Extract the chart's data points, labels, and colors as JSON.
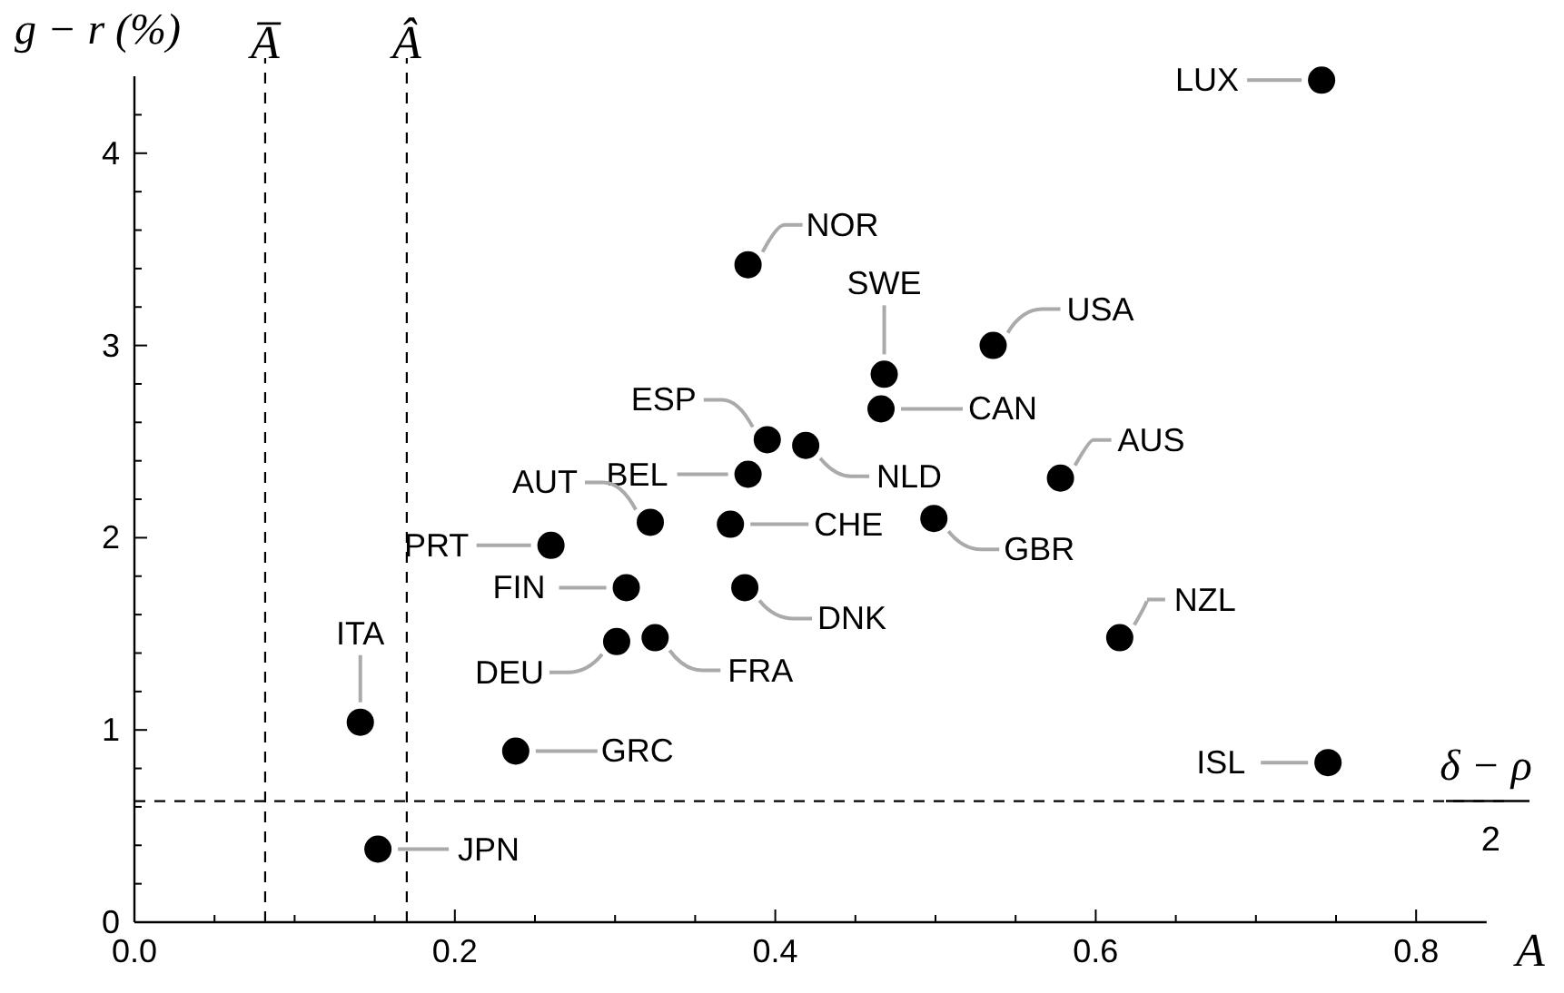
{
  "chart_data": {
    "type": "scatter",
    "xlabel": "A",
    "ylabel": "g − r (%)",
    "xlim": [
      0,
      0.844
    ],
    "ylim": [
      0,
      4.4
    ],
    "xticks": [
      {
        "value": 0,
        "label": "0.0"
      },
      {
        "value": 0.05,
        "label": null
      },
      {
        "value": 0.1,
        "label": null
      },
      {
        "value": 0.15,
        "label": null
      },
      {
        "value": 0.2,
        "label": "0.2"
      },
      {
        "value": 0.25,
        "label": null
      },
      {
        "value": 0.3,
        "label": null
      },
      {
        "value": 0.35,
        "label": null
      },
      {
        "value": 0.4,
        "label": "0.4"
      },
      {
        "value": 0.45,
        "label": null
      },
      {
        "value": 0.5,
        "label": null
      },
      {
        "value": 0.55,
        "label": null
      },
      {
        "value": 0.6,
        "label": "0.6"
      },
      {
        "value": 0.65,
        "label": null
      },
      {
        "value": 0.7,
        "label": null
      },
      {
        "value": 0.75,
        "label": null
      },
      {
        "value": 0.8,
        "label": "0.8"
      }
    ],
    "yticks": [
      0,
      {
        "value": 0.2,
        "label": null
      },
      {
        "value": 0.4,
        "label": null
      },
      {
        "value": 0.6,
        "label": null
      },
      {
        "value": 0.8,
        "label": null
      },
      1,
      {
        "value": 1.2,
        "label": null
      },
      {
        "value": 1.4,
        "label": null
      },
      {
        "value": 1.6,
        "label": null
      },
      {
        "value": 1.8,
        "label": null
      },
      2,
      {
        "value": 2.2,
        "label": null
      },
      {
        "value": 2.4,
        "label": null
      },
      {
        "value": 2.6,
        "label": null
      },
      {
        "value": 2.8,
        "label": null
      },
      3,
      {
        "value": 3.2,
        "label": null
      },
      {
        "value": 3.4,
        "label": null
      },
      {
        "value": 3.6,
        "label": null
      },
      {
        "value": 3.8,
        "label": null
      },
      4,
      {
        "value": 4.2,
        "label": null
      }
    ],
    "grid": false,
    "marker": "circle",
    "series": [
      {
        "color": "#000000",
        "x": [
          0.741,
          0.383,
          0.468,
          0.466,
          0.536,
          0.395,
          0.419,
          0.383,
          0.578,
          0.322,
          0.372,
          0.499,
          0.26,
          0.307,
          0.381,
          0.301,
          0.325,
          0.141,
          0.238,
          0.152,
          0.615,
          0.745
        ],
        "values": [
          4.38,
          3.42,
          2.85,
          2.67,
          3.0,
          2.51,
          2.48,
          2.33,
          2.31,
          2.08,
          2.07,
          2.1,
          1.96,
          1.74,
          1.74,
          1.46,
          1.48,
          1.04,
          0.89,
          0.38,
          1.48,
          0.83
        ]
      }
    ],
    "annotations": [
      {
        "text": "LUX",
        "x": 0.741,
        "y": 4.38
      },
      {
        "text": "NOR",
        "x": 0.383,
        "y": 3.42
      },
      {
        "text": "SWE",
        "x": 0.468,
        "y": 2.85
      },
      {
        "text": "CAN",
        "x": 0.466,
        "y": 2.67
      },
      {
        "text": "USA",
        "x": 0.536,
        "y": 3.0
      },
      {
        "text": "ESP",
        "x": 0.395,
        "y": 2.51
      },
      {
        "text": "NLD",
        "x": 0.419,
        "y": 2.48
      },
      {
        "text": "BEL",
        "x": 0.383,
        "y": 2.33
      },
      {
        "text": "AUS",
        "x": 0.578,
        "y": 2.31
      },
      {
        "text": "AUT",
        "x": 0.322,
        "y": 2.08
      },
      {
        "text": "CHE",
        "x": 0.372,
        "y": 2.07
      },
      {
        "text": "GBR",
        "x": 0.499,
        "y": 2.1
      },
      {
        "text": "PRT",
        "x": 0.26,
        "y": 1.96
      },
      {
        "text": "FIN",
        "x": 0.307,
        "y": 1.74
      },
      {
        "text": "DNK",
        "x": 0.381,
        "y": 1.74
      },
      {
        "text": "DEU",
        "x": 0.301,
        "y": 1.46
      },
      {
        "text": "FRA",
        "x": 0.325,
        "y": 1.48
      },
      {
        "text": "ITA",
        "x": 0.141,
        "y": 1.04
      },
      {
        "text": "GRC",
        "x": 0.238,
        "y": 0.89
      },
      {
        "text": "JPN",
        "x": 0.152,
        "y": 0.38
      },
      {
        "text": "NZL",
        "x": 0.615,
        "y": 1.48
      },
      {
        "text": "ISL",
        "x": 0.745,
        "y": 0.83
      }
    ],
    "ref_lines": [
      {
        "axis": "x",
        "value": 0.0816,
        "label": "A̅",
        "line_style": "dashed",
        "color": "#000000"
      },
      {
        "axis": "x",
        "value": 0.17,
        "label": "Â",
        "line_style": "dashed",
        "color": "#000000"
      },
      {
        "axis": "y",
        "value": 0.63,
        "label": "δ − ρ\n2",
        "line_style": "dashed",
        "color": "#000000"
      }
    ]
  }
}
